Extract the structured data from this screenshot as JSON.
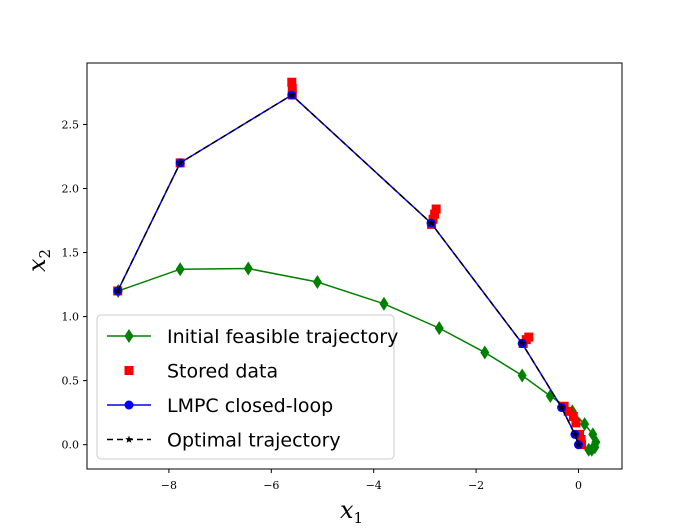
{
  "chart_data": {
    "type": "line",
    "xlabel": "x",
    "xlabel_sub": "1",
    "ylabel": "x",
    "ylabel_sub": "2",
    "xlim": [
      -9.6,
      0.85
    ],
    "ylim": [
      -0.19,
      2.98
    ],
    "xticks": [
      -8,
      -6,
      -4,
      -2,
      0
    ],
    "xtick_labels": [
      "−8",
      "−6",
      "−4",
      "−2",
      "0"
    ],
    "yticks": [
      0.0,
      0.5,
      1.0,
      1.5,
      2.0,
      2.5
    ],
    "ytick_labels": [
      "0.0",
      "0.5",
      "1.0",
      "1.5",
      "2.0",
      "2.5"
    ],
    "grid": false,
    "legend_position": "lower-left",
    "series": [
      {
        "name": "Initial feasible trajectory",
        "color": "#008000",
        "marker": "diamond",
        "line": "solid",
        "x": [
          -8.99,
          -7.78,
          -6.45,
          -5.1,
          -3.8,
          -2.72,
          -1.83,
          -1.1,
          -0.55,
          -0.12,
          0.12,
          0.28,
          0.34,
          0.32,
          0.26,
          0.2
        ],
        "y": [
          1.2,
          1.37,
          1.375,
          1.27,
          1.1,
          0.91,
          0.72,
          0.54,
          0.38,
          0.26,
          0.16,
          0.08,
          0.02,
          -0.02,
          -0.04,
          -0.04
        ]
      },
      {
        "name": "Stored data",
        "color": "#ff0000",
        "marker": "square",
        "line": "none",
        "x": [
          -9.0,
          -7.78,
          -5.59,
          -5.59,
          -5.6,
          -2.78,
          -2.81,
          -2.84,
          -2.87,
          -0.97,
          -1.02,
          -1.08,
          -0.28,
          -0.2,
          -0.1,
          -0.05,
          0.02,
          0.05,
          0.06
        ],
        "y": [
          1.2,
          2.2,
          2.73,
          2.78,
          2.83,
          1.84,
          1.8,
          1.76,
          1.72,
          0.84,
          0.82,
          0.79,
          0.3,
          0.26,
          0.22,
          0.17,
          0.08,
          0.04,
          0.0
        ]
      },
      {
        "name": "LMPC closed-loop",
        "color": "#0000ff",
        "marker": "circle",
        "line": "solid",
        "x": [
          -9.0,
          -7.78,
          -5.6,
          -2.88,
          -1.1,
          -0.33,
          -0.07,
          0.0
        ],
        "y": [
          1.2,
          2.2,
          2.73,
          1.73,
          0.79,
          0.29,
          0.08,
          0.0
        ]
      },
      {
        "name": "Optimal trajectory",
        "color": "#000000",
        "marker": "star",
        "line": "dashed",
        "x": [
          -9.0,
          -7.78,
          -5.6,
          -2.88,
          -1.1,
          -0.33,
          -0.07,
          0.0
        ],
        "y": [
          1.2,
          2.2,
          2.73,
          1.73,
          0.79,
          0.29,
          0.08,
          0.0
        ]
      }
    ]
  }
}
